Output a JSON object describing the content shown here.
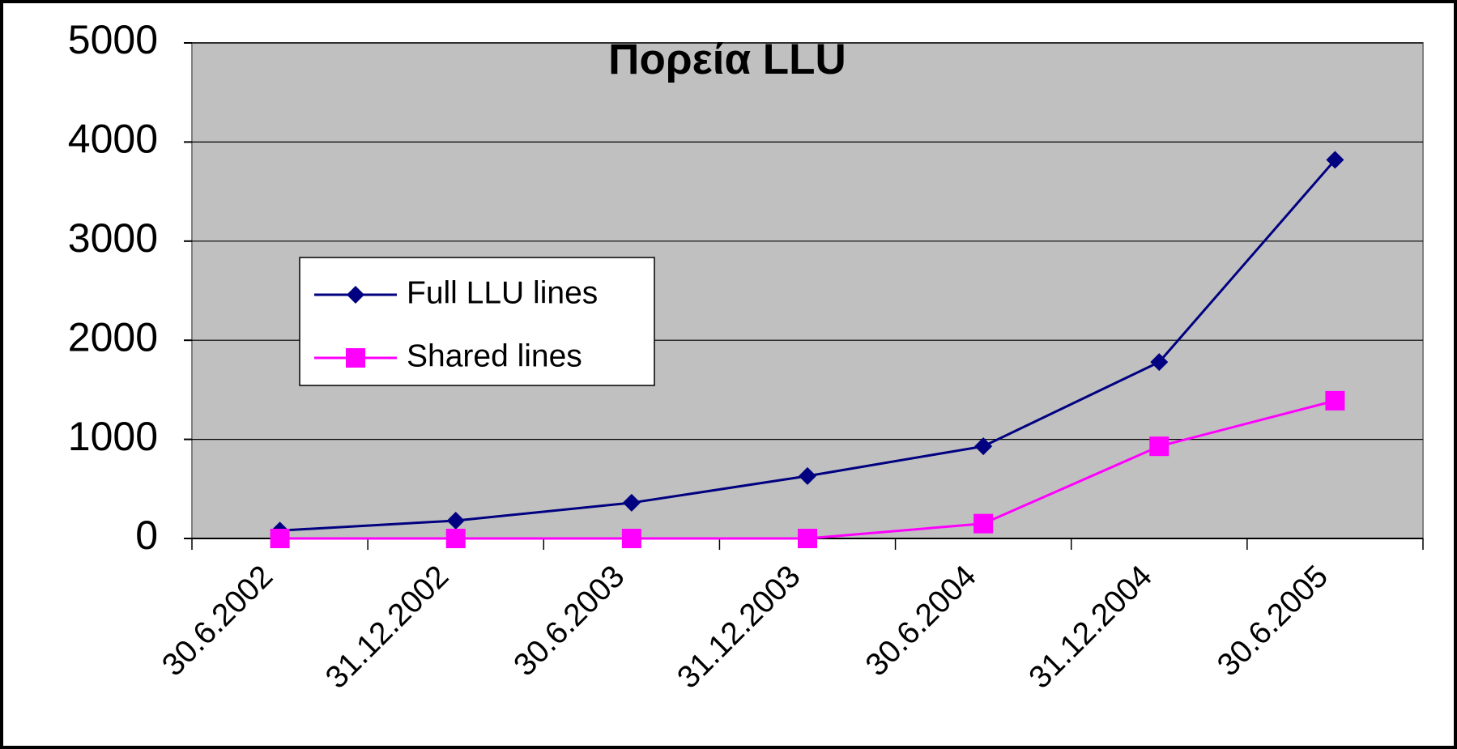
{
  "chart_data": {
    "type": "line",
    "title": "Πορεία LLU",
    "categories": [
      "30.6.2002",
      "31.12.2002",
      "30.6.2003",
      "31.12.2003",
      "30.6.2004",
      "31.12.2004",
      "30.6.2005"
    ],
    "series": [
      {
        "name": "Full LLU lines",
        "color": "#000080",
        "marker": "diamond",
        "values": [
          80,
          180,
          360,
          630,
          930,
          1780,
          3820
        ]
      },
      {
        "name": "Shared lines",
        "color": "#ff00ff",
        "marker": "square",
        "values": [
          0,
          0,
          0,
          0,
          150,
          930,
          1390
        ]
      }
    ],
    "ylim": [
      0,
      5000
    ],
    "yticks": [
      0,
      1000,
      2000,
      3000,
      4000,
      5000
    ],
    "grid": true,
    "legend": "left"
  }
}
